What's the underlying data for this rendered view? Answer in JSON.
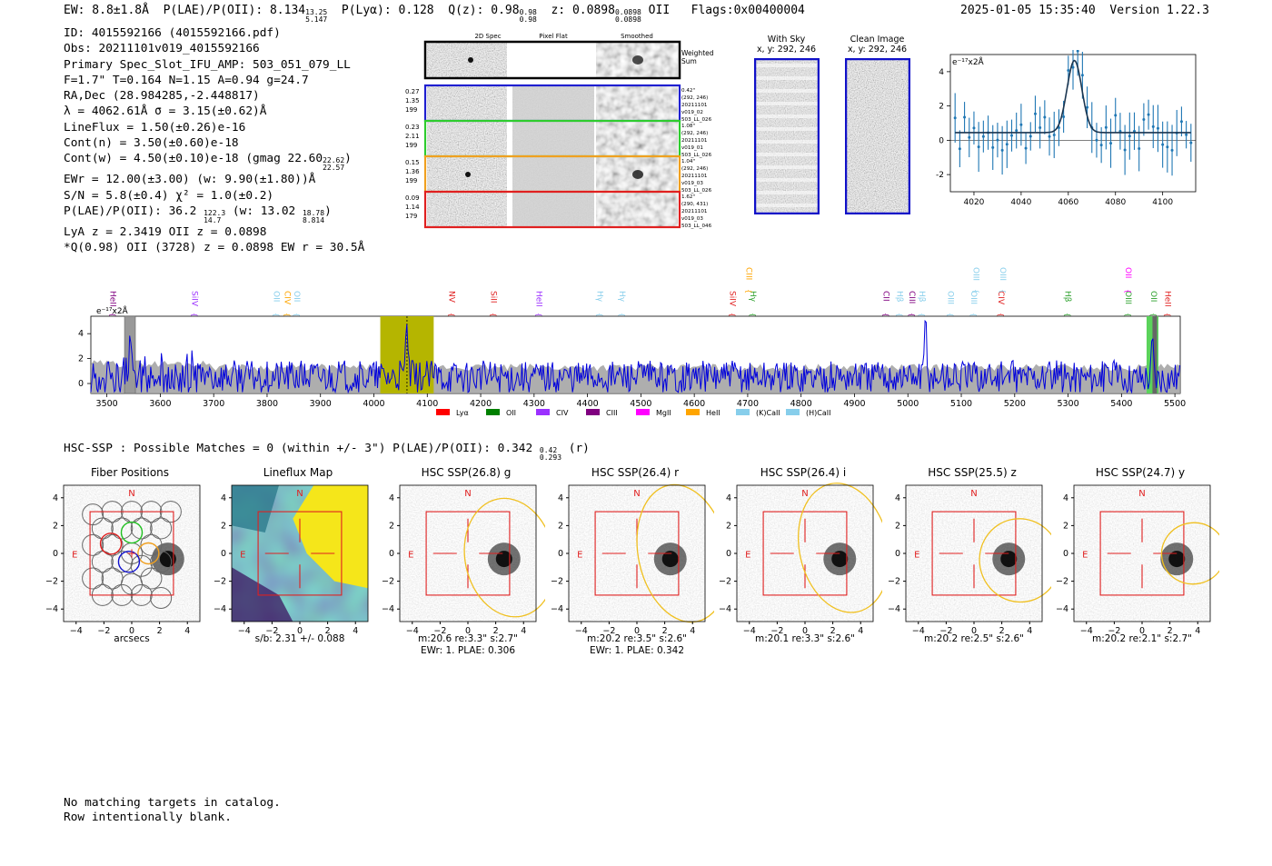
{
  "header": {
    "ew": "EW: 8.8±1.8Å",
    "plae_label": "P(LAE)/P(OII): 8.134",
    "plae_hi": "13.25",
    "plae_lo": "5.147",
    "plya": "P(Lyα): 0.128",
    "q_label": "Q(z): 0.98",
    "q_hi": "0.98",
    "q_lo": "0.98",
    "z_label": "z: 0.0898",
    "z_hi": "0.0898",
    "z_lo": "0.0898",
    "z_line": "OII",
    "flags": "Flags:0x00400004",
    "datetime": "2025-01-05 15:35:40",
    "version": "Version 1.22.3"
  },
  "info": {
    "id": "ID: 4015592166 (4015592166.pdf)",
    "obs": "Obs: 20211101v019_4015592166",
    "primary": "Primary Spec_Slot_IFU_AMP: 503_051_079_LL",
    "fit": "F=1.7\"  T=0.164  N=1.15  A=0.94  g=24.7",
    "radec": "RA,Dec (28.984285,-2.448817)",
    "lambda": "λ = 4062.61Å  σ = 3.15(±0.62)Å",
    "lineflux": "LineFlux = 1.50(±0.26)e-16",
    "contn": "Cont(n) = 3.50(±0.60)e-18",
    "contw_label": "Cont(w) = 4.50(±0.10)e-18 (gmag 22.60",
    "contw_hi": "22.62",
    "contw_lo": "22.57",
    "contw_end": ")",
    "ewr": "EWr = 12.00(±3.00) (w: 9.90(±1.80))Å",
    "sn": "S/N = 5.8(±0.4)  χ² = 1.0(±0.2)",
    "plae_label": "P(LAE)/P(OII): 36.2",
    "plae_hi": "122.3",
    "plae_lo": "14.7",
    "plae_mid": "(w: 13.02",
    "plae_w_hi": "18.78",
    "plae_w_lo": "8.814",
    "plae_end": ")",
    "lya": "LyA z = 2.3419  OII z = 0.0898",
    "q": "*Q(0.98) OII (3728) z = 0.0898  EW r = 30.5Å"
  },
  "stamps": {
    "col_2d": "2D Spec",
    "col_flat": "Pixel Flat",
    "col_smooth": "Smoothed",
    "weighted": "Weighted\nSum",
    "weighted_1": "Weighted",
    "weighted_2": "Sum",
    "rows": [
      {
        "vals": [
          "0.27",
          "1.35",
          "199"
        ],
        "meta": [
          "0.42\"",
          "(292, 246)",
          "20211101",
          "v019_02",
          "503_LL_026"
        ],
        "color": "#1f1fd0"
      },
      {
        "vals": [
          "0.23",
          "2.11",
          "199"
        ],
        "meta": [
          "1.08\"",
          "(292, 246)",
          "20211101",
          "v019_01",
          "503_LL_026"
        ],
        "color": "#2ecc2e"
      },
      {
        "vals": [
          "0.15",
          "1.36",
          "199"
        ],
        "meta": [
          "1.04\"",
          "(292, 246)",
          "20211101",
          "v019_03",
          "503_LL_026"
        ],
        "color": "#f0a020"
      },
      {
        "vals": [
          "0.09",
          "1.14",
          "179"
        ],
        "meta": [
          "1.62\"",
          "(290, 431)",
          "20211101",
          "v019_03",
          "503_LL_046"
        ],
        "color": "#e02020"
      }
    ]
  },
  "sky_panels": {
    "with_sky_title": "With Sky",
    "with_sky_coords": "x, y: 292, 246",
    "clean_title": "Clean Image",
    "clean_coords": "x, y: 292, 246"
  },
  "zoom_plot": {
    "unit": "e⁻¹⁷x2Å",
    "x_ticks": [
      "4020",
      "4040",
      "4060",
      "4080",
      "4100"
    ],
    "y_ticks": [
      "4",
      "2",
      "0",
      "-2"
    ]
  },
  "full_spectrum": {
    "unit": "e⁻¹⁷x2Å",
    "x_ticks": [
      "3500",
      "3600",
      "3700",
      "3800",
      "3900",
      "4000",
      "4100",
      "4200",
      "4300",
      "4400",
      "4500",
      "4600",
      "4700",
      "4800",
      "4900",
      "5000",
      "5100",
      "5200",
      "5300",
      "5400",
      "5500"
    ],
    "y_ticks": [
      "4",
      "2",
      "0"
    ],
    "line_labels": [
      {
        "text": "HeII",
        "wave": 3512,
        "color": "#800080",
        "row": 0
      },
      {
        "text": "SiIV",
        "wave": 3665,
        "color": "#9b30ff",
        "row": 0
      },
      {
        "text": "OII",
        "wave": 3818,
        "color": "#87ceeb",
        "row": 0
      },
      {
        "text": "CIV",
        "wave": 3838,
        "color": "#ffa500",
        "row": 0
      },
      {
        "text": "OII",
        "wave": 3856,
        "color": "#87ceeb",
        "row": 0
      },
      {
        "text": "NV",
        "wave": 4146,
        "color": "#e02020",
        "row": 0
      },
      {
        "text": "SiII",
        "wave": 4225,
        "color": "#e02020",
        "row": 0
      },
      {
        "text": "HeII",
        "wave": 4310,
        "color": "#9b30ff",
        "row": 0
      },
      {
        "text": "Hγ",
        "wave": 4424,
        "color": "#87ceeb",
        "row": 0
      },
      {
        "text": "Hγ",
        "wave": 4465,
        "color": "#87ceeb",
        "row": 0
      },
      {
        "text": "SiIV",
        "wave": 4672,
        "color": "#e02020",
        "row": 0
      },
      {
        "text": "Hγ",
        "wave": 4710,
        "color": "#2ca02c",
        "row": 0
      },
      {
        "text": "CIII",
        "wave": 4703,
        "color": "#ffa500",
        "row": 1
      },
      {
        "text": "CII",
        "wave": 4960,
        "color": "#800080",
        "row": 0
      },
      {
        "text": "Hβ",
        "wave": 4985,
        "color": "#87ceeb",
        "row": 0
      },
      {
        "text": "CIII",
        "wave": 5008,
        "color": "#800080",
        "row": 0
      },
      {
        "text": "Hβ",
        "wave": 5027,
        "color": "#87ceeb",
        "row": 0
      },
      {
        "text": "OIII",
        "wave": 5080,
        "color": "#87ceeb",
        "row": 0
      },
      {
        "text": "OIII",
        "wave": 5124,
        "color": "#87ceeb",
        "row": 0
      },
      {
        "text": "CIV",
        "wave": 5175,
        "color": "#e02020",
        "row": 0
      },
      {
        "text": "OIII",
        "wave": 5128,
        "color": "#87ceeb",
        "row": 1
      },
      {
        "text": "OIII",
        "wave": 5178,
        "color": "#87ceeb",
        "row": 1
      },
      {
        "text": "Hβ",
        "wave": 5300,
        "color": "#2ca02c",
        "row": 0
      },
      {
        "text": "OIII",
        "wave": 5413,
        "color": "#2ca02c",
        "row": 0
      },
      {
        "text": "OII",
        "wave": 5461,
        "color": "#2ca02c",
        "row": 0
      },
      {
        "text": "HeII",
        "wave": 5487,
        "color": "#e02020",
        "row": 0
      },
      {
        "text": "OII",
        "wave": 5413,
        "color": "#ff00ff",
        "row": 1
      }
    ],
    "legend": [
      {
        "label": "Lyα",
        "color": "#ff0000"
      },
      {
        "label": "OII",
        "color": "#008000"
      },
      {
        "label": "CIV",
        "color": "#9b30ff"
      },
      {
        "label": "CIII",
        "color": "#800080"
      },
      {
        "label": "MgII",
        "color": "#ff00ff"
      },
      {
        "label": "HeII",
        "color": "#ffa500"
      },
      {
        "label": "(K)CaII",
        "color": "#87ceeb"
      },
      {
        "label": "(H)CaII",
        "color": "#87ceeb"
      }
    ]
  },
  "hsc": {
    "title_left": "HSC-SSP : Possible Matches = 0 (within +/- 3\")  P(LAE)/P(OII): 0.342",
    "title_hi": "0.42",
    "title_lo": "0.293",
    "title_end": "(r)"
  },
  "cutouts": {
    "x_ticks": [
      "−4",
      "−2",
      "0",
      "2",
      "4"
    ],
    "y_ticks": [
      "4",
      "2",
      "0",
      "−2",
      "−4"
    ],
    "north": "N",
    "east": "E",
    "panels": [
      {
        "title": "Fiber Positions",
        "label": [
          "arcsecs"
        ]
      },
      {
        "title": "Lineflux Map",
        "label": [
          "s/b: 2.31 +/- 0.088"
        ]
      },
      {
        "title": "HSC SSP(26.8) g",
        "label": [
          "m:20.6  re:3.3\"  s:2.7\"",
          "EWr: 1. PLAE: 0.306"
        ]
      },
      {
        "title": "HSC SSP(26.4) r",
        "label": [
          "m:20.2  re:3.5\"  s:2.6\"",
          "EWr: 1. PLAE: 0.342"
        ]
      },
      {
        "title": "HSC SSP(26.4) i",
        "label": [
          "m:20.1  re:3.3\"  s:2.6\""
        ]
      },
      {
        "title": "HSC SSP(25.5) z",
        "label": [
          "m:20.2  re:2.5\"  s:2.6\""
        ]
      },
      {
        "title": "HSC SSP(24.7) y",
        "label": [
          "m:20.2  re:2.1\"  s:2.7\""
        ]
      }
    ]
  },
  "footer": {
    "line1": "No matching targets in catalog.",
    "line2": "Row intentionally blank."
  },
  "colors": {
    "spectrum": "#0000dd",
    "error_band": "#a0a0a0",
    "highlight": "#b5b500",
    "fit": "#1f77b4"
  }
}
